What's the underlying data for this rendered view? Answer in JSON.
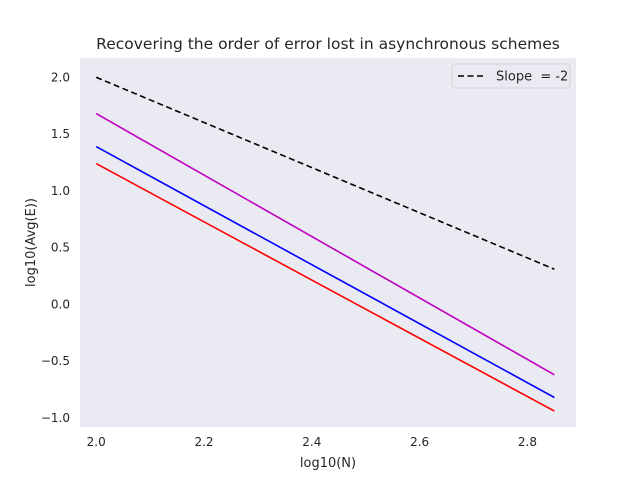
{
  "chart_data": {
    "type": "line",
    "title": "Recovering the order of error lost in asynchronous schemes",
    "xlabel": "log10(N)",
    "ylabel": "log10(Avg(E))",
    "xlim": [
      1.97,
      2.89
    ],
    "ylim": [
      -1.08,
      2.17
    ],
    "xticks": [
      2.0,
      2.2,
      2.4,
      2.6,
      2.8
    ],
    "xtick_labels": [
      "2.0",
      "2.2",
      "2.4",
      "2.6",
      "2.8"
    ],
    "yticks": [
      -1.0,
      -0.5,
      0.0,
      0.5,
      1.0,
      1.5,
      2.0
    ],
    "ytick_labels": [
      "−1.0",
      "−0.5",
      "0.0",
      "0.5",
      "1.0",
      "1.5",
      "2.0"
    ],
    "grid": false,
    "background": "#eaeaf2",
    "legend": {
      "placement": "top-right"
    },
    "series": [
      {
        "name": "Slope  = -2",
        "color": "#000000",
        "dashed": true,
        "x": [
          2.0,
          2.85
        ],
        "y": [
          2.0,
          0.31
        ]
      },
      {
        "color": "#bf00bf",
        "dashed": false,
        "x": [
          2.0,
          2.85
        ],
        "y": [
          1.68,
          -0.62
        ]
      },
      {
        "color": "#0000ff",
        "dashed": false,
        "x": [
          2.0,
          2.85
        ],
        "y": [
          1.39,
          -0.82
        ]
      },
      {
        "color": "#ff0000",
        "dashed": false,
        "x": [
          2.0,
          2.85
        ],
        "y": [
          1.24,
          -0.94
        ]
      }
    ]
  }
}
